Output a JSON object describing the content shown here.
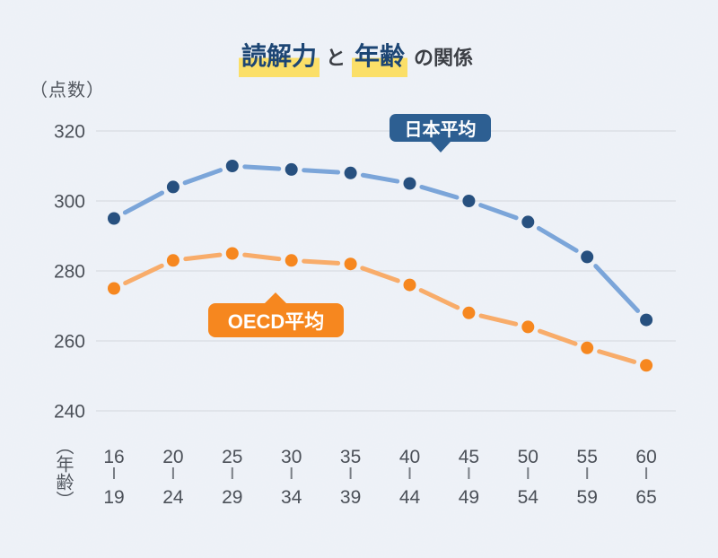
{
  "title": {
    "keyword1": "読解力",
    "connector": "と",
    "keyword2": "年齢",
    "suffix": "の関係",
    "highlight_color": "#fbdf68",
    "keyword_color": "#1d4674"
  },
  "y_axis": {
    "unit_label": "（点数）",
    "ticks": [
      320,
      300,
      280,
      260,
      240
    ]
  },
  "x_axis": {
    "unit_label": "（年齢）"
  },
  "series_labels": {
    "japan": "日本平均",
    "oecd": "OECD平均"
  },
  "colors": {
    "background": "#edf1f7",
    "gridline": "#d9dce1",
    "tick_text": "#4b5058",
    "japan_box": "#2d5f92",
    "oecd_box": "#f6871f"
  },
  "chart_data": {
    "type": "line",
    "title": "読解力 と 年齢 の関係",
    "xlabel": "年齢",
    "ylabel": "点数",
    "ylim": [
      240,
      320
    ],
    "yticks": [
      320,
      300,
      280,
      260,
      240
    ],
    "grid": true,
    "legend_position": "callouts-on-plot",
    "categories": [
      "16-19",
      "20-24",
      "25-29",
      "30-34",
      "35-39",
      "40-44",
      "45-49",
      "50-54",
      "55-59",
      "60-65"
    ],
    "series": [
      {
        "name": "日本平均",
        "values": [
          295,
          304,
          310,
          309,
          308,
          305,
          300,
          294,
          284,
          266
        ],
        "dot_color": "#27507f",
        "line_color": "#7ba5d9"
      },
      {
        "name": "OECD平均",
        "values": [
          275,
          283,
          285,
          283,
          282,
          276,
          268,
          264,
          258,
          253
        ],
        "dot_color": "#f6871f",
        "line_color": "#f8ac6a"
      }
    ]
  }
}
